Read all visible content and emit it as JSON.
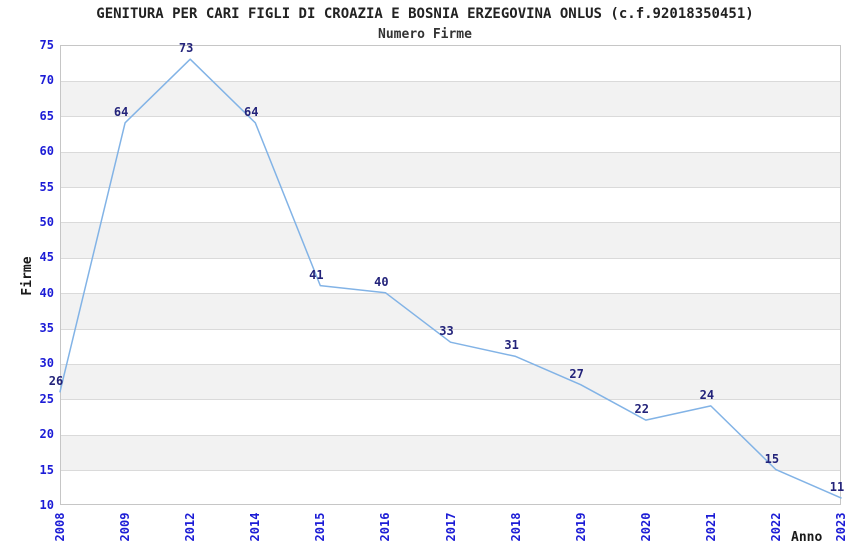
{
  "chart_data": {
    "type": "line",
    "title": "GENITURA PER CARI FIGLI DI CROAZIA E BOSNIA ERZEGOVINA ONLUS (c.f.92018350451)",
    "subtitle": "Numero Firme",
    "xlabel": "Anno",
    "ylabel": "Firme",
    "categories": [
      "2008",
      "2009",
      "2012",
      "2014",
      "2015",
      "2016",
      "2017",
      "2018",
      "2019",
      "2020",
      "2021",
      "2022",
      "2023"
    ],
    "series": [
      {
        "name": "Numero Firme",
        "values": [
          26,
          64,
          73,
          64,
          41,
          40,
          33,
          31,
          27,
          22,
          24,
          15,
          11
        ]
      }
    ],
    "point_labels": [
      "26",
      "64",
      "73",
      "64",
      "41",
      "40",
      "33",
      "31",
      "27",
      "22",
      "24",
      "15",
      "11"
    ],
    "ylim": [
      10,
      75
    ],
    "ytick_step": 5,
    "grid": "horizontal gridlines with alternating shaded bands",
    "legend_position": "none",
    "colors": {
      "line": "#82b3e6",
      "tick_label": "#1c1cd6",
      "point_label": "#23237a",
      "band_fill": "#f2f2f2",
      "grid_line": "#dadada",
      "plot_border": "#c6c6c6",
      "title_text": "#222222"
    }
  }
}
